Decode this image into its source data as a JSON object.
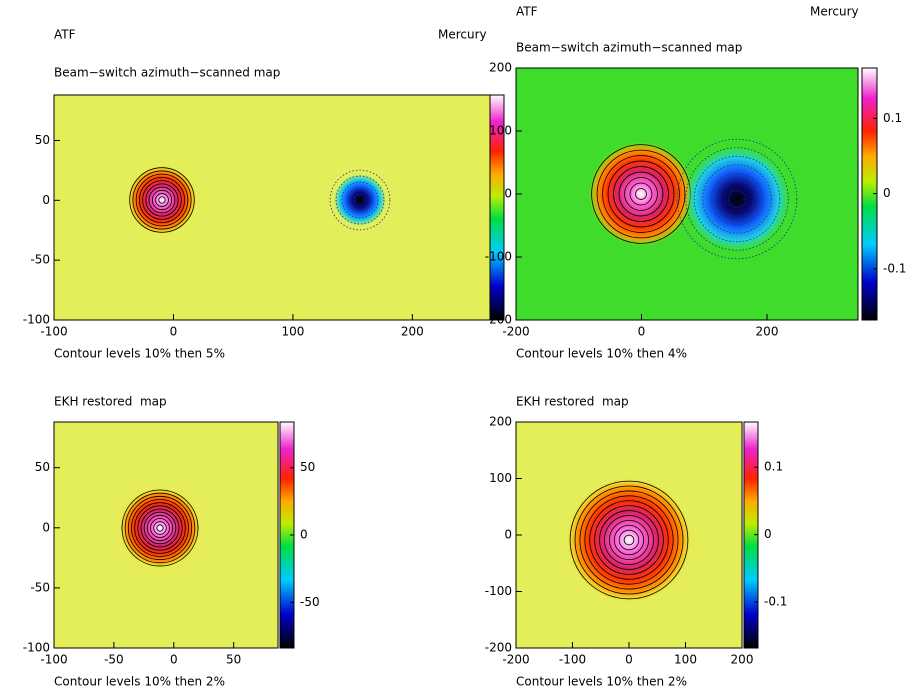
{
  "chart_data": [
    {
      "type": "heatmap",
      "header_left": "ATF",
      "header_right": "Mercury",
      "title": "Beam−switch azimuth−scanned map",
      "caption": "Contour levels 10% then 5%",
      "xlim": [
        -100,
        265
      ],
      "ylim": [
        -100,
        88
      ],
      "xticks": [
        -100,
        0,
        100,
        200
      ],
      "yticks": [
        -100,
        -50,
        0,
        50
      ]
    },
    {
      "type": "heatmap",
      "header_left": "ATF",
      "header_right": "Mercury",
      "title": "Beam−switch azimuth−scanned map",
      "caption": "Contour levels 10% then 4%",
      "xlim": [
        -200,
        345
      ],
      "ylim": [
        -200,
        200
      ],
      "xticks": [
        -200,
        0,
        200
      ],
      "yticks": [
        -200,
        -100,
        0,
        100,
        200
      ],
      "colorbar_lim": [
        -0.168,
        0.167
      ],
      "colorbar_ticks": [
        -0.1,
        0,
        0.1
      ]
    },
    {
      "type": "heatmap",
      "title": "EKH restored  map",
      "caption": "Contour levels 10% then 2%",
      "xlim": [
        -100,
        87
      ],
      "ylim": [
        -100,
        88
      ],
      "xticks": [
        -100,
        -50,
        0,
        50
      ],
      "yticks": [
        -100,
        -50,
        0,
        50
      ],
      "colorbar_lim": [
        -84,
        84
      ],
      "colorbar_ticks": [
        -50,
        0,
        50
      ]
    },
    {
      "type": "heatmap",
      "title": "EKH restored  map",
      "caption": "Contour levels 10% then 2%",
      "xlim": [
        -200,
        200
      ],
      "ylim": [
        -200,
        200
      ],
      "xticks": [
        -200,
        -100,
        0,
        100,
        200
      ],
      "yticks": [
        -200,
        -100,
        0,
        100,
        200
      ],
      "colorbar_lim": [
        -0.168,
        0.167
      ],
      "colorbar_ticks": [
        -0.1,
        0,
        0.1
      ]
    }
  ]
}
